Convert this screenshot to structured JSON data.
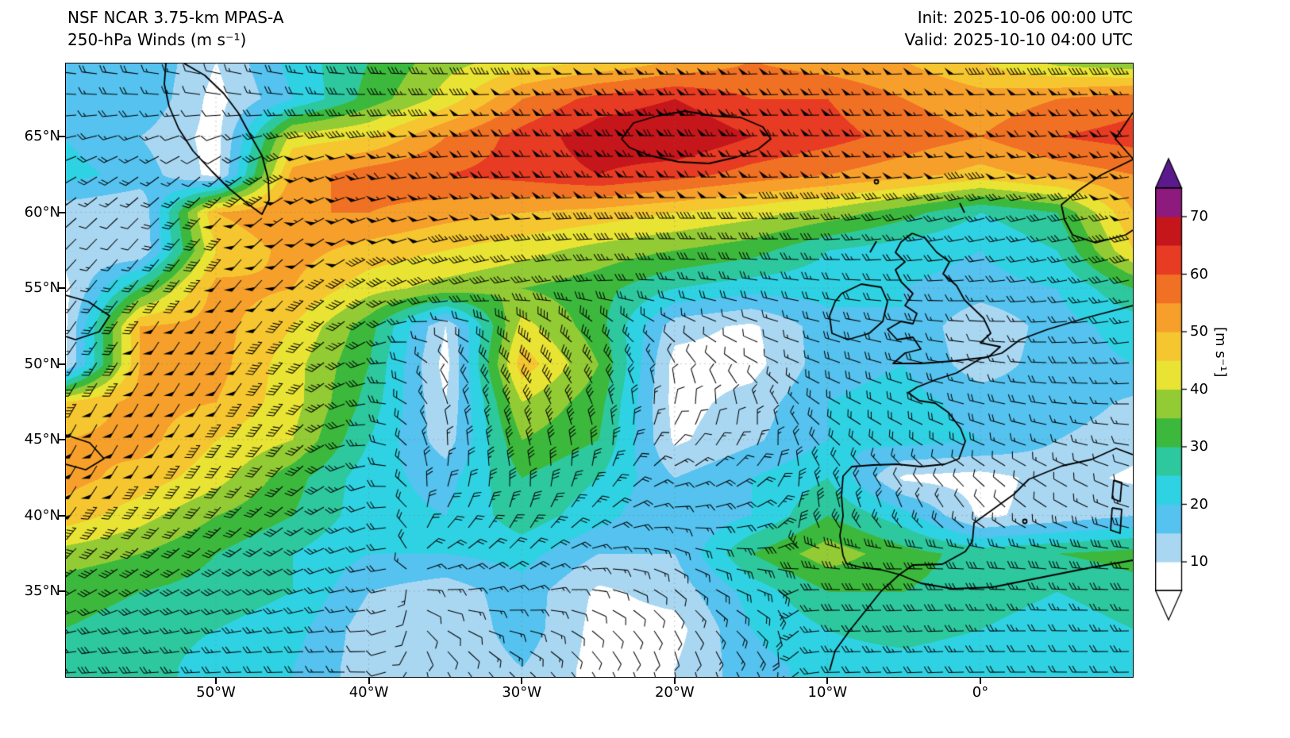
{
  "header": {
    "model_line": "NSF NCAR 3.75-km MPAS-A",
    "field_line": "250-hPa Winds (m s⁻¹)",
    "init_line": "Init: 2025-10-06 00:00 UTC",
    "valid_line": "Valid: 2025-10-10 04:00 UTC"
  },
  "axes": {
    "lat_ticks": [
      {
        "label": "65°N",
        "value": 65
      },
      {
        "label": "60°N",
        "value": 60
      },
      {
        "label": "55°N",
        "value": 55
      },
      {
        "label": "50°N",
        "value": 50
      },
      {
        "label": "45°N",
        "value": 45
      },
      {
        "label": "40°N",
        "value": 40
      },
      {
        "label": "35°N",
        "value": 35
      }
    ],
    "lon_ticks": [
      {
        "label": "50°W",
        "value": -50
      },
      {
        "label": "40°W",
        "value": -40
      },
      {
        "label": "30°W",
        "value": -30
      },
      {
        "label": "20°W",
        "value": -20
      },
      {
        "label": "10°W",
        "value": -10
      },
      {
        "label": "0°",
        "value": 0
      }
    ]
  },
  "colorbar": {
    "label": "[m s⁻¹]",
    "ticks": [
      {
        "label": "10",
        "value": 10
      },
      {
        "label": "20",
        "value": 20
      },
      {
        "label": "30",
        "value": 30
      },
      {
        "label": "40",
        "value": 40
      },
      {
        "label": "50",
        "value": 50
      },
      {
        "label": "60",
        "value": 60
      },
      {
        "label": "70",
        "value": 70
      }
    ],
    "levels": [
      5,
      10,
      15,
      20,
      25,
      30,
      35,
      40,
      45,
      50,
      55,
      60,
      65,
      70,
      75
    ],
    "band_colors": [
      "#ffffff",
      "#a9d7f2",
      "#55c2ef",
      "#2fd2e3",
      "#2dc89e",
      "#3cb93c",
      "#93cb35",
      "#e9e434",
      "#f6c630",
      "#f6a02b",
      "#f07123",
      "#e73b23",
      "#c5161b",
      "#8d1a7d"
    ],
    "over_color": "#5b1a8c",
    "under_color": "#ffffff"
  },
  "chart_data": {
    "type": "heatmap",
    "title": "250-hPa Winds (m s⁻¹)",
    "model": "NSF NCAR 3.75-km MPAS-A",
    "init_time": "2025-10-06 00:00 UTC",
    "valid_time": "2025-10-10 04:00 UTC",
    "units": "m s⁻¹",
    "overlay": "wind barbs (half=5, full=10, flag=50 m s⁻¹)",
    "lon_range": [
      -60,
      10
    ],
    "lat_range": [
      30,
      70
    ],
    "contour_levels": [
      10,
      15,
      20,
      25,
      30,
      35,
      40,
      45,
      50,
      55,
      60,
      65,
      70
    ],
    "lons": [
      -60,
      -55,
      -50,
      -45,
      -40,
      -35,
      -30,
      -25,
      -20,
      -15,
      -10,
      -5,
      0,
      5,
      10
    ],
    "lats": [
      70,
      67.5,
      65,
      62.5,
      60,
      57.5,
      55,
      52.5,
      50,
      47.5,
      45,
      42.5,
      40,
      37.5,
      35,
      32.5,
      30
    ],
    "wind_speed_grid": [
      [
        18,
        20,
        10,
        22,
        30,
        38,
        42,
        45,
        50,
        55,
        52,
        50,
        45,
        38,
        35
      ],
      [
        15,
        20,
        8,
        20,
        32,
        42,
        55,
        62,
        65,
        60,
        60,
        55,
        52,
        55,
        58
      ],
      [
        20,
        15,
        8,
        42,
        45,
        55,
        62,
        68,
        70,
        65,
        62,
        58,
        55,
        60,
        62
      ],
      [
        22,
        18,
        8,
        52,
        58,
        60,
        62,
        65,
        62,
        58,
        55,
        52,
        48,
        52,
        55
      ],
      [
        12,
        10,
        50,
        55,
        55,
        52,
        50,
        48,
        45,
        42,
        38,
        32,
        25,
        30,
        50
      ],
      [
        12,
        10,
        45,
        52,
        48,
        45,
        42,
        38,
        35,
        32,
        25,
        22,
        20,
        25,
        45
      ],
      [
        8,
        30,
        52,
        50,
        42,
        38,
        35,
        32,
        25,
        22,
        22,
        20,
        18,
        20,
        30
      ],
      [
        8,
        50,
        52,
        45,
        32,
        10,
        42,
        32,
        12,
        9,
        18,
        20,
        10,
        18,
        22
      ],
      [
        8,
        50,
        52,
        42,
        30,
        8,
        48,
        35,
        8,
        8,
        18,
        20,
        12,
        18,
        20
      ],
      [
        45,
        52,
        50,
        42,
        28,
        10,
        40,
        32,
        8,
        12,
        20,
        22,
        18,
        18,
        14
      ],
      [
        50,
        52,
        45,
        40,
        25,
        12,
        35,
        30,
        9,
        14,
        20,
        22,
        20,
        15,
        12
      ],
      [
        52,
        48,
        42,
        32,
        22,
        18,
        30,
        25,
        15,
        20,
        25,
        9,
        8,
        12,
        9
      ],
      [
        48,
        42,
        35,
        30,
        22,
        20,
        28,
        22,
        15,
        20,
        30,
        22,
        9,
        12,
        15
      ],
      [
        38,
        35,
        30,
        25,
        20,
        20,
        22,
        15,
        15,
        30,
        38,
        32,
        28,
        30,
        32
      ],
      [
        32,
        30,
        28,
        25,
        15,
        12,
        18,
        9,
        12,
        22,
        30,
        30,
        28,
        25,
        28
      ],
      [
        30,
        28,
        25,
        22,
        12,
        10,
        18,
        8,
        8,
        20,
        25,
        28,
        25,
        22,
        25
      ],
      [
        30,
        28,
        22,
        20,
        12,
        10,
        15,
        8,
        10,
        18,
        22,
        22,
        20,
        20,
        22
      ]
    ],
    "wind_from_direction_grid": [
      [
        280,
        280,
        285,
        280,
        275,
        272,
        270,
        268,
        268,
        268,
        268,
        268,
        268,
        268,
        268
      ],
      [
        272,
        272,
        278,
        275,
        270,
        268,
        268,
        268,
        268,
        268,
        268,
        268,
        268,
        268,
        268
      ],
      [
        258,
        252,
        250,
        258,
        262,
        266,
        270,
        270,
        270,
        270,
        270,
        268,
        266,
        265,
        265
      ],
      [
        242,
        236,
        230,
        245,
        258,
        264,
        268,
        270,
        270,
        269,
        267,
        264,
        262,
        262,
        262
      ],
      [
        230,
        226,
        224,
        238,
        252,
        260,
        265,
        268,
        270,
        268,
        264,
        258,
        255,
        258,
        260
      ],
      [
        224,
        221,
        219,
        230,
        245,
        255,
        261,
        266,
        271,
        272,
        269,
        264,
        260,
        258,
        256
      ],
      [
        219,
        218,
        217,
        226,
        240,
        252,
        259,
        266,
        276,
        281,
        278,
        271,
        266,
        261,
        257
      ],
      [
        215,
        214,
        214,
        222,
        236,
        282,
        302,
        312,
        300,
        290,
        284,
        279,
        274,
        267,
        261
      ],
      [
        212,
        212,
        213,
        221,
        252,
        322,
        316,
        322,
        332,
        300,
        290,
        284,
        279,
        271,
        265
      ],
      [
        210,
        210,
        212,
        218,
        262,
        341,
        331,
        336,
        10,
        341,
        300,
        291,
        284,
        277,
        269
      ],
      [
        208,
        210,
        214,
        221,
        271,
        356,
        341,
        351,
        40,
        20,
        311,
        301,
        291,
        284,
        277
      ],
      [
        211,
        213,
        217,
        226,
        256,
        11,
        351,
        21,
        71,
        51,
        331,
        321,
        311,
        301,
        291
      ],
      [
        216,
        219,
        223,
        233,
        251,
        31,
        21,
        51,
        91,
        71,
        351,
        341,
        321,
        301,
        286
      ],
      [
        226,
        229,
        233,
        241,
        256,
        61,
        46,
        81,
        111,
        91,
        281,
        271,
        276,
        279,
        276
      ],
      [
        241,
        243,
        246,
        251,
        261,
        91,
        71,
        101,
        131,
        111,
        271,
        269,
        271,
        273,
        271
      ],
      [
        256,
        257,
        259,
        261,
        266,
        121,
        101,
        131,
        151,
        131,
        269,
        266,
        269,
        271,
        269
      ],
      [
        266,
        266,
        267,
        269,
        271,
        151,
        131,
        151,
        171,
        151,
        269,
        267,
        269,
        271,
        269
      ]
    ]
  }
}
